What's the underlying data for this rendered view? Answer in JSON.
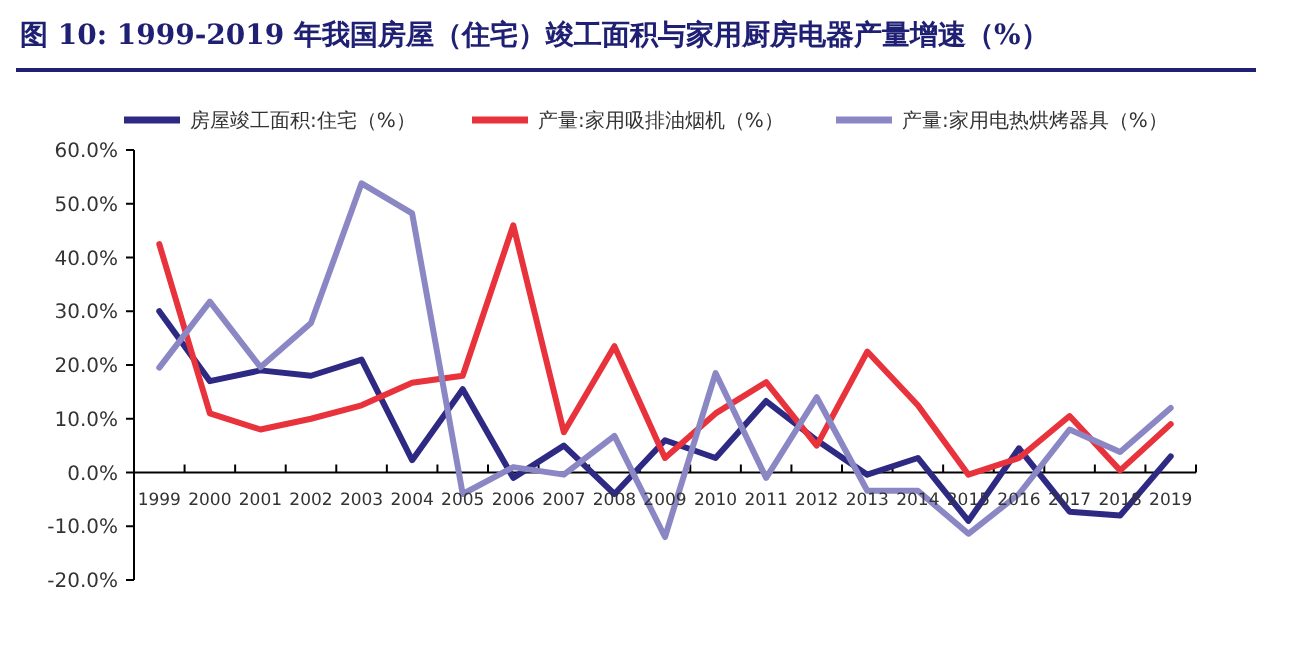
{
  "chart_data": {
    "type": "line",
    "title": "图 10:  1999-2019 年我国房屋（住宅）竣工面积与家用厨房电器产量增速（%）",
    "categories": [
      "1999",
      "2000",
      "2001",
      "2002",
      "2003",
      "2004",
      "2005",
      "2006",
      "2007",
      "2008",
      "2009",
      "2010",
      "2011",
      "2012",
      "2013",
      "2014",
      "2015",
      "2016",
      "2017",
      "2018",
      "2019"
    ],
    "series": [
      {
        "name": "房屋竣工面积:住宅（%）",
        "color": "#2e2a84",
        "values": [
          30,
          17,
          19,
          18,
          21,
          2.3,
          15.5,
          -1,
          5,
          -4,
          6,
          2.7,
          13.3,
          6,
          -0.4,
          2.7,
          -9,
          4.5,
          -7.3,
          -8,
          3
        ]
      },
      {
        "name": "产量:家用吸排油烟机（%）",
        "color": "#e8323c",
        "values": [
          42.5,
          11,
          8,
          10,
          12.5,
          16.7,
          18,
          46,
          7.5,
          23.5,
          2.7,
          11,
          16.8,
          5,
          22.5,
          12.5,
          -0.4,
          2.7,
          10.5,
          0.4,
          9
        ]
      },
      {
        "name": "产量:家用电热烘烤器具（%）",
        "color": "#8b87c4",
        "values": [
          19.5,
          31.8,
          19.6,
          27.8,
          53.8,
          48.2,
          -4,
          1,
          -0.4,
          6.8,
          -12,
          18.5,
          -1,
          14,
          -3.4,
          -3.4,
          -11.4,
          -4,
          8,
          3.8,
          12
        ]
      }
    ],
    "ylim": [
      -20,
      60
    ],
    "yticks": [
      {
        "value": -20,
        "label": "-20.0%"
      },
      {
        "value": -10,
        "label": "-10.0%"
      },
      {
        "value": 0,
        "label": "0.0%"
      },
      {
        "value": 10,
        "label": "10.0%"
      },
      {
        "value": 20,
        "label": "20.0%"
      },
      {
        "value": 30,
        "label": "30.0%"
      },
      {
        "value": 40,
        "label": "40.0%"
      },
      {
        "value": 50,
        "label": "50.0%"
      },
      {
        "value": 60,
        "label": "60.0%"
      }
    ],
    "grid": false,
    "legend": "top",
    "line_style": "solid",
    "marker": "none"
  }
}
